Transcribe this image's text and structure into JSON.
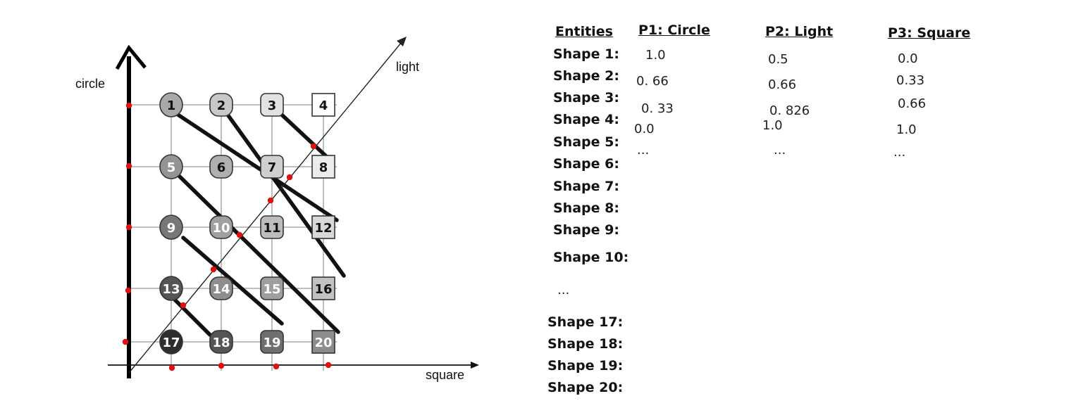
{
  "axes": {
    "vertical": "circle",
    "horizontal": "square",
    "diagonal": "light"
  },
  "shape_numbers": [
    "1",
    "2",
    "3",
    "4",
    "5",
    "6",
    "7",
    "8",
    "9",
    "10",
    "11",
    "12",
    "13",
    "14",
    "15",
    "16",
    "17",
    "18",
    "19",
    "20"
  ],
  "table": {
    "headers": {
      "entities": "Entities",
      "p1": "P1: Circle",
      "p2": "P2: Light",
      "p3": "P3: Square"
    },
    "entities": [
      "Shape 1:",
      "Shape 2:",
      "Shape 3:",
      "Shape 4:",
      "Shape 5:",
      "Shape 6:",
      "Shape 7:",
      "Shape 8:",
      "Shape 9:",
      "Shape 10:",
      "...",
      "Shape 17:",
      "Shape 18:",
      "Shape 19:",
      "Shape 20:"
    ],
    "p1_values": [
      "1.0",
      "0. 66",
      "0. 33",
      "0.0",
      "..."
    ],
    "p2_values": [
      "0.5",
      "0.66",
      "0. 826",
      "1.0",
      "..."
    ],
    "p3_values": [
      "0.0",
      "0.33",
      "0.66",
      "1.0",
      "..."
    ]
  },
  "colors": {
    "axis": "#000000",
    "grid": "#9a9a9a",
    "intersection_dot": "#e01010",
    "diagonal_line": "#111111"
  }
}
